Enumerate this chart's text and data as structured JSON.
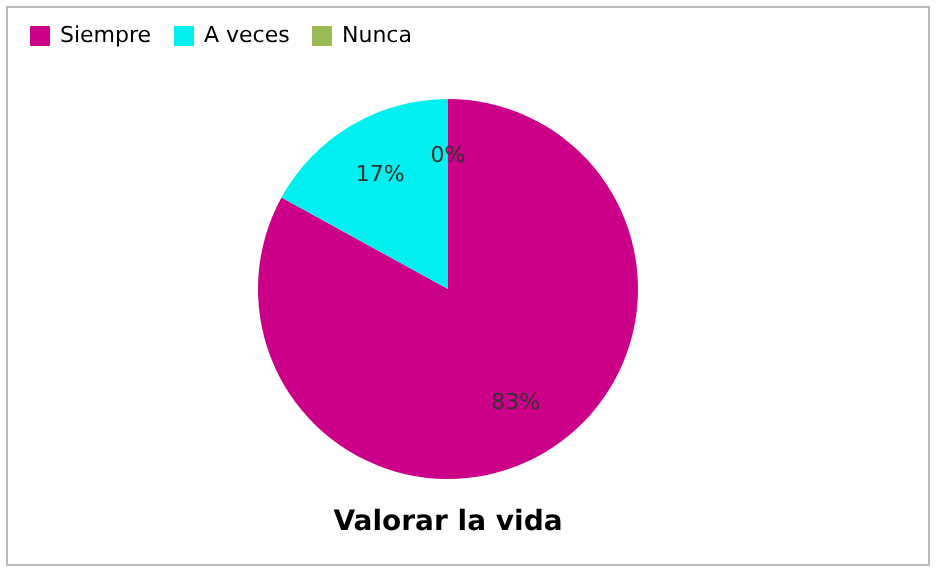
{
  "chart_data": {
    "type": "pie",
    "title": "Valorar la vida",
    "categories": [
      "Siempre",
      "A veces",
      "Nunca"
    ],
    "values": [
      83,
      17,
      0
    ],
    "colors": [
      "#cc0088",
      "#00f0f0",
      "#9bbb59"
    ],
    "value_labels": [
      "83%",
      "17%",
      "0%"
    ],
    "legend": "top"
  }
}
